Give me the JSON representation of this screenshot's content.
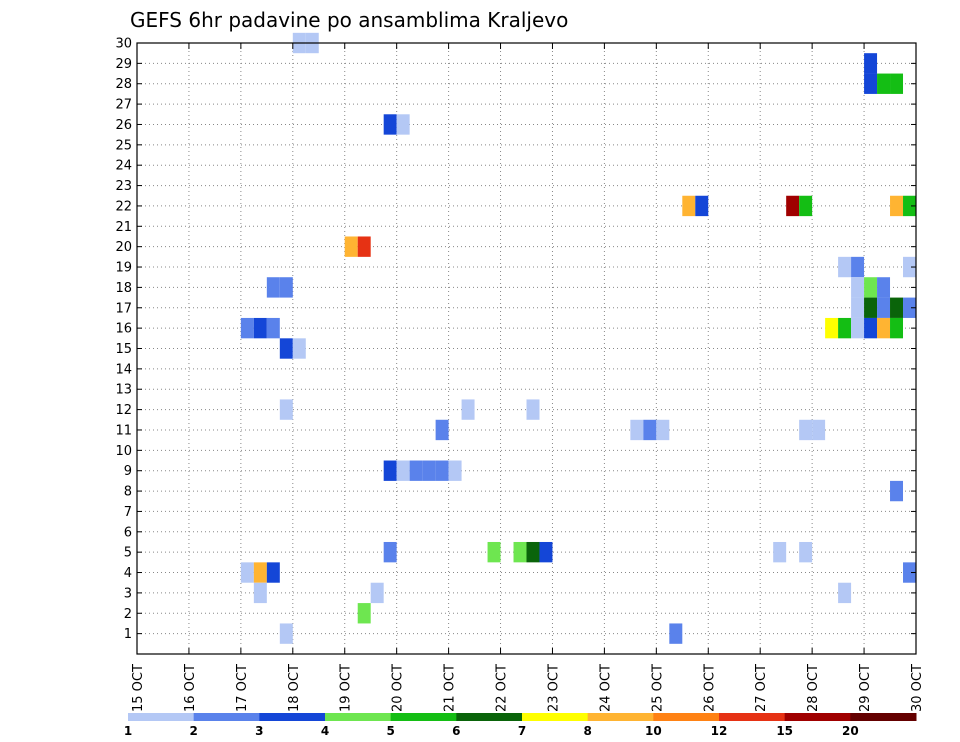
{
  "chart_data": {
    "type": "heatmap",
    "title": "GEFS 6hr padavine po ansamblima Kraljevo",
    "xlabel": "",
    "ylabel": "",
    "x_tick_labels": [
      "15 OCT",
      "16 OCT",
      "17 OCT",
      "18 OCT",
      "19 OCT",
      "20 OCT",
      "21 OCT",
      "22 OCT",
      "23 OCT",
      "24 OCT",
      "25 OCT",
      "26 OCT",
      "27 OCT",
      "28 OCT",
      "29 OCT",
      "30 OCT"
    ],
    "xlim_days": [
      0,
      15
    ],
    "y_members": [
      1,
      2,
      3,
      4,
      5,
      6,
      7,
      8,
      9,
      10,
      11,
      12,
      13,
      14,
      15,
      16,
      17,
      18,
      19,
      20,
      21,
      22,
      23,
      24,
      25,
      26,
      27,
      28,
      29,
      30
    ],
    "ylim": [
      0,
      30
    ],
    "grid": true,
    "legend": {
      "placement": "bottom",
      "tick_labels": [
        "1",
        "2",
        "3",
        "4",
        "5",
        "6",
        "7",
        "8",
        "10",
        "12",
        "15",
        "20"
      ],
      "colors": [
        "#b4c8f5",
        "#5a82eb",
        "#1446d7",
        "#6ee650",
        "#14be14",
        "#0a640a",
        "#ffff00",
        "#ffb432",
        "#ff8214",
        "#e63214",
        "#a00000",
        "#640000"
      ]
    },
    "cells": [
      {
        "member": 30,
        "t": 3.25,
        "cls": 0
      },
      {
        "member": 30,
        "t": 3.5,
        "cls": 0
      },
      {
        "member": 29,
        "t": 14.25,
        "cls": 2
      },
      {
        "member": 28,
        "t": 14.25,
        "cls": 2
      },
      {
        "member": 28,
        "t": 14.5,
        "cls": 4
      },
      {
        "member": 28,
        "t": 14.75,
        "cls": 4
      },
      {
        "member": 26,
        "t": 5.0,
        "cls": 2
      },
      {
        "member": 26,
        "t": 5.25,
        "cls": 0
      },
      {
        "member": 22,
        "t": 10.75,
        "cls": 7
      },
      {
        "member": 22,
        "t": 11.0,
        "cls": 2
      },
      {
        "member": 22,
        "t": 12.75,
        "cls": 10
      },
      {
        "member": 22,
        "t": 13.0,
        "cls": 4
      },
      {
        "member": 22,
        "t": 14.75,
        "cls": 7
      },
      {
        "member": 22,
        "t": 15.0,
        "cls": 4
      },
      {
        "member": 20,
        "t": 4.25,
        "cls": 7
      },
      {
        "member": 20,
        "t": 4.5,
        "cls": 9
      },
      {
        "member": 19,
        "t": 13.75,
        "cls": 0
      },
      {
        "member": 19,
        "t": 14.0,
        "cls": 1
      },
      {
        "member": 19,
        "t": 15.0,
        "cls": 0
      },
      {
        "member": 18,
        "t": 2.75,
        "cls": 1
      },
      {
        "member": 18,
        "t": 3.0,
        "cls": 1
      },
      {
        "member": 18,
        "t": 14.0,
        "cls": 0
      },
      {
        "member": 18,
        "t": 14.25,
        "cls": 3
      },
      {
        "member": 18,
        "t": 14.5,
        "cls": 1
      },
      {
        "member": 17,
        "t": 14.0,
        "cls": 0
      },
      {
        "member": 17,
        "t": 14.25,
        "cls": 5
      },
      {
        "member": 17,
        "t": 14.5,
        "cls": 1
      },
      {
        "member": 17,
        "t": 14.75,
        "cls": 5
      },
      {
        "member": 17,
        "t": 15.0,
        "cls": 1
      },
      {
        "member": 16,
        "t": 2.25,
        "cls": 1
      },
      {
        "member": 16,
        "t": 2.5,
        "cls": 2
      },
      {
        "member": 16,
        "t": 2.75,
        "cls": 1
      },
      {
        "member": 16,
        "t": 13.5,
        "cls": 6
      },
      {
        "member": 16,
        "t": 13.75,
        "cls": 4
      },
      {
        "member": 16,
        "t": 14.0,
        "cls": 0
      },
      {
        "member": 16,
        "t": 14.25,
        "cls": 2
      },
      {
        "member": 16,
        "t": 14.5,
        "cls": 7
      },
      {
        "member": 16,
        "t": 14.75,
        "cls": 4
      },
      {
        "member": 15,
        "t": 3.0,
        "cls": 2
      },
      {
        "member": 15,
        "t": 3.25,
        "cls": 0
      },
      {
        "member": 12,
        "t": 3.0,
        "cls": 0
      },
      {
        "member": 12,
        "t": 6.5,
        "cls": 0
      },
      {
        "member": 12,
        "t": 7.75,
        "cls": 0
      },
      {
        "member": 11,
        "t": 6.0,
        "cls": 1
      },
      {
        "member": 11,
        "t": 9.75,
        "cls": 0
      },
      {
        "member": 11,
        "t": 10.0,
        "cls": 1
      },
      {
        "member": 11,
        "t": 10.25,
        "cls": 0
      },
      {
        "member": 11,
        "t": 13.0,
        "cls": 0
      },
      {
        "member": 11,
        "t": 13.25,
        "cls": 0
      },
      {
        "member": 9,
        "t": 5.0,
        "cls": 2
      },
      {
        "member": 9,
        "t": 5.25,
        "cls": 0
      },
      {
        "member": 9,
        "t": 5.5,
        "cls": 1
      },
      {
        "member": 9,
        "t": 5.75,
        "cls": 1
      },
      {
        "member": 9,
        "t": 6.0,
        "cls": 1
      },
      {
        "member": 9,
        "t": 6.25,
        "cls": 0
      },
      {
        "member": 8,
        "t": 14.75,
        "cls": 1
      },
      {
        "member": 5,
        "t": 5.0,
        "cls": 1
      },
      {
        "member": 5,
        "t": 7.0,
        "cls": 3
      },
      {
        "member": 5,
        "t": 7.5,
        "cls": 3
      },
      {
        "member": 5,
        "t": 7.75,
        "cls": 5
      },
      {
        "member": 5,
        "t": 8.0,
        "cls": 2
      },
      {
        "member": 5,
        "t": 12.5,
        "cls": 0
      },
      {
        "member": 5,
        "t": 13.0,
        "cls": 0
      },
      {
        "member": 4,
        "t": 2.25,
        "cls": 0
      },
      {
        "member": 4,
        "t": 2.5,
        "cls": 7
      },
      {
        "member": 4,
        "t": 2.75,
        "cls": 2
      },
      {
        "member": 4,
        "t": 15.0,
        "cls": 1
      },
      {
        "member": 3,
        "t": 2.5,
        "cls": 0
      },
      {
        "member": 3,
        "t": 4.75,
        "cls": 0
      },
      {
        "member": 3,
        "t": 13.75,
        "cls": 0
      },
      {
        "member": 2,
        "t": 4.5,
        "cls": 3
      },
      {
        "member": 1,
        "t": 3.0,
        "cls": 0
      },
      {
        "member": 1,
        "t": 10.5,
        "cls": 1
      }
    ]
  }
}
